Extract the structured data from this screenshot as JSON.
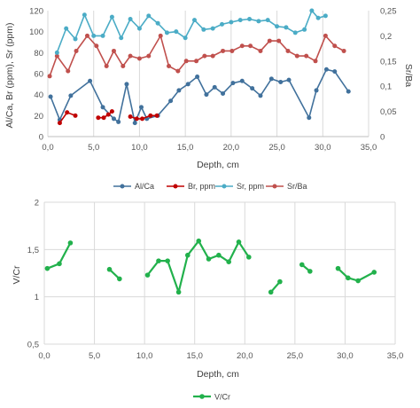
{
  "chart_data": [
    {
      "type": "line",
      "xlabel": "Depth, cm",
      "ylabel": "Al/Ca, Br (ppm), Sr (ppm)",
      "y2label": "Sr/Ba",
      "xlim": [
        0,
        35
      ],
      "ylim": [
        0,
        120
      ],
      "y2lim": [
        0,
        0.25
      ],
      "x_ticks": [
        "0,0",
        "5,0",
        "10,0",
        "15,0",
        "20,0",
        "25,0",
        "30,0",
        "35,0"
      ],
      "y_ticks": [
        "0",
        "20",
        "40",
        "60",
        "80",
        "100",
        "120"
      ],
      "y2_ticks": [
        "0",
        "0,05",
        "0,1",
        "0,15",
        "0,2",
        "0,25"
      ],
      "grid": "vertical",
      "legend_position": "bottom",
      "series": [
        {
          "name": "Al/Ca",
          "axis": "left",
          "color": "#41719c",
          "segments": [
            [
              [
                0.3,
                38
              ],
              [
                1.3,
                16
              ],
              [
                2.5,
                39
              ],
              [
                4.6,
                53
              ],
              [
                6.0,
                28
              ],
              [
                7.2,
                17
              ],
              [
                7.7,
                14
              ],
              [
                8.6,
                50
              ],
              [
                9.5,
                13
              ],
              [
                10.2,
                28
              ],
              [
                10.8,
                17
              ],
              [
                12.0,
                20
              ],
              [
                13.4,
                34
              ],
              [
                14.3,
                44
              ],
              [
                15.3,
                50
              ],
              [
                16.3,
                57
              ],
              [
                17.3,
                40
              ],
              [
                18.2,
                47
              ],
              [
                19.1,
                41
              ],
              [
                20.2,
                51
              ],
              [
                21.2,
                53
              ],
              [
                22.3,
                46
              ],
              [
                23.2,
                39
              ],
              [
                24.4,
                55
              ],
              [
                25.4,
                52
              ],
              [
                26.3,
                54
              ],
              [
                28.5,
                18
              ],
              [
                29.3,
                44
              ],
              [
                30.4,
                64
              ],
              [
                31.3,
                62
              ],
              [
                32.8,
                43
              ]
            ]
          ]
        },
        {
          "name": "Br, ppm",
          "axis": "left",
          "color": "#c00000",
          "segments": [
            [
              [
                1.3,
                13
              ],
              [
                2.1,
                23
              ],
              [
                3.0,
                20
              ]
            ],
            [
              [
                5.5,
                18
              ],
              [
                6.1,
                18
              ],
              [
                6.6,
                21
              ],
              [
                7.0,
                24
              ]
            ],
            [
              [
                9.0,
                19
              ],
              [
                9.7,
                17
              ],
              [
                10.3,
                17
              ],
              [
                11.2,
                20
              ],
              [
                11.9,
                20
              ]
            ]
          ]
        },
        {
          "name": "Sr, ppm",
          "axis": "left",
          "color": "#4bacc6",
          "segments": [
            [
              [
                1.0,
                80
              ],
              [
                2.0,
                103
              ],
              [
                3.0,
                93
              ],
              [
                4.0,
                116
              ],
              [
                5.0,
                96
              ],
              [
                6.0,
                96
              ],
              [
                7.0,
                114
              ],
              [
                8.0,
                94
              ],
              [
                9.0,
                112
              ],
              [
                10.0,
                103
              ],
              [
                11.0,
                115
              ],
              [
                12.0,
                108
              ],
              [
                13.0,
                99
              ],
              [
                14.0,
                100
              ],
              [
                15.0,
                94
              ],
              [
                16.0,
                111
              ],
              [
                17.0,
                102
              ],
              [
                18.0,
                103
              ],
              [
                19.0,
                107
              ],
              [
                20.0,
                109
              ],
              [
                21.0,
                111
              ],
              [
                22.0,
                112
              ],
              [
                23.0,
                110
              ],
              [
                24.0,
                111
              ],
              [
                25.0,
                105
              ],
              [
                26.0,
                104
              ],
              [
                27.0,
                99
              ],
              [
                28.0,
                102
              ],
              [
                28.8,
                120
              ],
              [
                29.5,
                113
              ],
              [
                30.3,
                115
              ]
            ]
          ]
        },
        {
          "name": "Sr/Ba",
          "axis": "right",
          "color": "#c0504d",
          "segments": [
            [
              [
                0.2,
                0.12
              ],
              [
                1.0,
                0.16
              ],
              [
                2.2,
                0.13
              ],
              [
                3.1,
                0.17
              ],
              [
                4.3,
                0.2
              ],
              [
                5.3,
                0.18
              ],
              [
                6.4,
                0.14
              ],
              [
                7.2,
                0.17
              ],
              [
                8.2,
                0.14
              ],
              [
                9.0,
                0.16
              ],
              [
                10.0,
                0.155
              ],
              [
                11.0,
                0.16
              ],
              [
                12.3,
                0.2
              ],
              [
                13.2,
                0.14
              ],
              [
                14.2,
                0.13
              ],
              [
                15.1,
                0.15
              ],
              [
                16.2,
                0.15
              ],
              [
                17.1,
                0.16
              ],
              [
                18.0,
                0.16
              ],
              [
                19.1,
                0.17
              ],
              [
                20.1,
                0.17
              ],
              [
                21.2,
                0.18
              ],
              [
                22.1,
                0.18
              ],
              [
                23.2,
                0.17
              ],
              [
                24.2,
                0.19
              ],
              [
                25.2,
                0.19
              ],
              [
                26.2,
                0.17
              ],
              [
                27.2,
                0.16
              ],
              [
                28.2,
                0.16
              ],
              [
                29.2,
                0.15
              ],
              [
                30.3,
                0.2
              ],
              [
                31.3,
                0.18
              ],
              [
                32.3,
                0.17
              ]
            ]
          ]
        }
      ]
    },
    {
      "type": "line",
      "xlabel": "Depth, cm",
      "ylabel": "V/Cr",
      "xlim": [
        0,
        35
      ],
      "ylim": [
        0.5,
        2
      ],
      "x_ticks": [
        "0,0",
        "5,0",
        "10,0",
        "15,0",
        "20,0",
        "25,0",
        "30,0",
        "35,0"
      ],
      "y_ticks": [
        "0,5",
        "1",
        "1,5",
        "2"
      ],
      "grid": "both",
      "legend_position": "bottom",
      "series": [
        {
          "name": "V/Cr",
          "color": "#22b14c",
          "segments": [
            [
              [
                0.3,
                1.3
              ],
              [
                1.5,
                1.35
              ],
              [
                2.6,
                1.57
              ]
            ],
            [
              [
                6.5,
                1.29
              ],
              [
                7.5,
                1.19
              ]
            ],
            [
              [
                10.3,
                1.23
              ],
              [
                11.4,
                1.38
              ],
              [
                12.3,
                1.38
              ],
              [
                13.4,
                1.05
              ],
              [
                14.3,
                1.44
              ],
              [
                15.4,
                1.59
              ],
              [
                16.4,
                1.4
              ],
              [
                17.4,
                1.44
              ],
              [
                18.4,
                1.37
              ],
              [
                19.4,
                1.58
              ],
              [
                20.4,
                1.42
              ]
            ],
            [
              [
                22.6,
                1.05
              ],
              [
                23.5,
                1.16
              ]
            ],
            [
              [
                25.7,
                1.34
              ],
              [
                26.5,
                1.27
              ]
            ],
            [
              [
                29.3,
                1.3
              ],
              [
                30.3,
                1.2
              ],
              [
                31.3,
                1.17
              ],
              [
                32.9,
                1.26
              ]
            ]
          ]
        }
      ]
    }
  ]
}
